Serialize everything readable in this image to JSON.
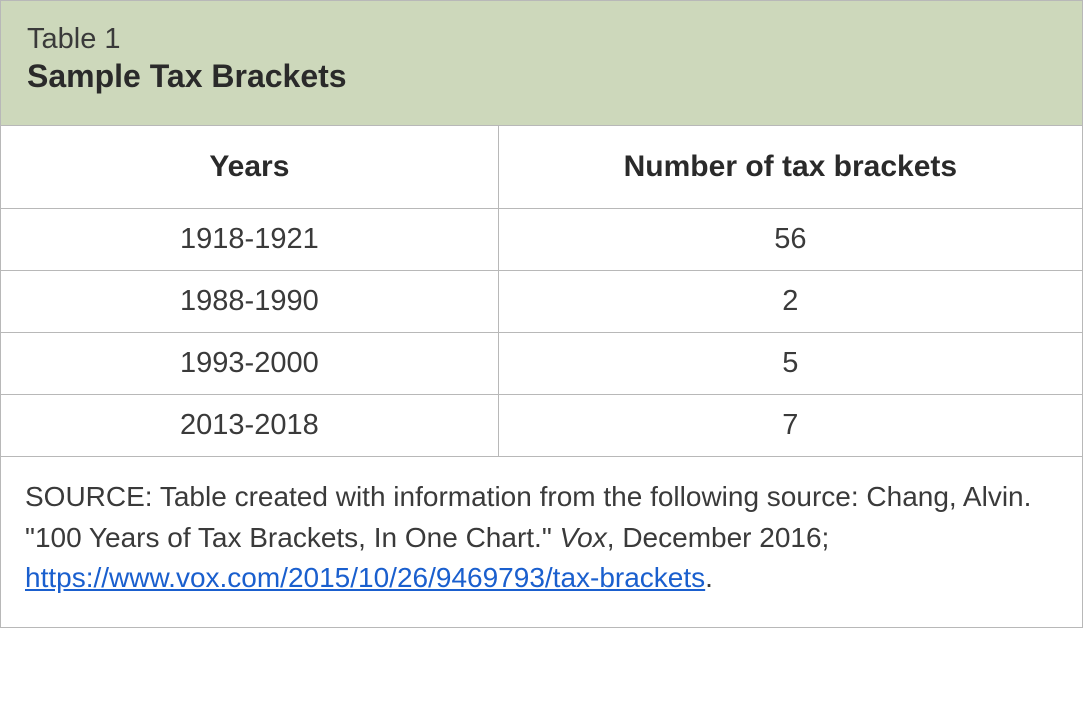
{
  "table": {
    "label": "Table 1",
    "title": "Sample Tax Brackets",
    "header_bg_color": "#cdd8bb",
    "border_color": "#b8b8b8",
    "text_color": "#3a3a3a",
    "title_color": "#2a2a2a",
    "label_fontsize": 29,
    "title_fontsize": 32,
    "header_fontsize": 30,
    "cell_fontsize": 29,
    "source_fontsize": 28,
    "columns": [
      "Years",
      "Number of tax brackets"
    ],
    "column_widths": [
      "46%",
      "54%"
    ],
    "rows": [
      [
        "1918-1921",
        "56"
      ],
      [
        "1988-1990",
        "2"
      ],
      [
        "1993-2000",
        "5"
      ],
      [
        "2013-2018",
        "7"
      ]
    ],
    "source_prefix": "SOURCE: Table created with information from the following source: Chang, Alvin. \"100 Years of Tax Brackets, In One Chart.\" ",
    "source_journal": "Vox",
    "source_date": ", December 2016; ",
    "source_link_text": "https://www.vox.com/2015/10/26/9469793/tax-brackets",
    "source_suffix": ".",
    "link_color": "#1a5fce"
  }
}
